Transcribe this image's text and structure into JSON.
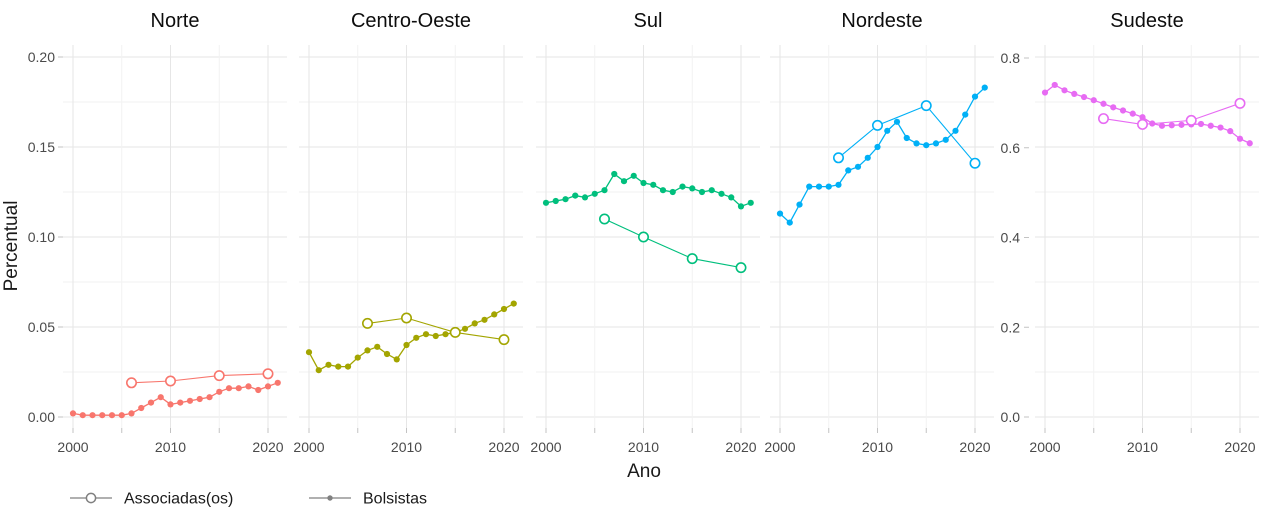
{
  "legend": {
    "marker_color": "#7f7f7f",
    "items": [
      {
        "label": "Associadas(os)",
        "marker": "open-circle"
      },
      {
        "label": "Bolsistas",
        "marker": "filled-dot"
      }
    ]
  },
  "chart_data": {
    "type": "line",
    "title": "",
    "facet_titles": [
      "Norte",
      "Centro-Oeste",
      "Sul",
      "Nordeste",
      "Sudeste"
    ],
    "x_axis": {
      "label": "Ano",
      "tick_labels": [
        "2000",
        "2010",
        "2020"
      ],
      "tick_years": [
        2000,
        2010,
        2020
      ],
      "gridline_years": [
        2000,
        2005,
        2010,
        2015,
        2020
      ],
      "range": [
        1999,
        2022
      ]
    },
    "left_axis": {
      "label": "Percentual",
      "applies_to": [
        "Norte",
        "Centro-Oeste",
        "Sul",
        "Nordeste"
      ],
      "tick_labels": [
        "0.00",
        "0.05",
        "0.10",
        "0.15",
        "0.20"
      ],
      "ticks": [
        0.0,
        0.05,
        0.1,
        0.15,
        0.2
      ],
      "minor_ticks": [
        0.025,
        0.075,
        0.125,
        0.175
      ],
      "range": [
        0,
        0.2
      ],
      "grid": true
    },
    "right_axis": {
      "applies_to": [
        "Sudeste"
      ],
      "tick_labels": [
        "0.0",
        "0.2",
        "0.4",
        "0.6",
        "0.8"
      ],
      "ticks": [
        0.0,
        0.2,
        0.4,
        0.6,
        0.8
      ],
      "minor_ticks": [
        0.1,
        0.3,
        0.5,
        0.7
      ],
      "range": [
        0,
        0.8
      ],
      "grid": true
    },
    "facets": [
      {
        "name": "Norte",
        "color": "#F8766D",
        "y_scale": "left",
        "bolsistas": {
          "years": [
            2000,
            2001,
            2002,
            2003,
            2004,
            2005,
            2006,
            2007,
            2008,
            2009,
            2010,
            2011,
            2012,
            2013,
            2014,
            2015,
            2016,
            2017,
            2018,
            2019,
            2020,
            2021
          ],
          "values": [
            0.002,
            0.001,
            0.001,
            0.001,
            0.001,
            0.001,
            0.002,
            0.005,
            0.008,
            0.011,
            0.007,
            0.008,
            0.009,
            0.01,
            0.011,
            0.014,
            0.016,
            0.016,
            0.017,
            0.015,
            0.017,
            0.019
          ]
        },
        "associadas": {
          "years": [
            2006,
            2010,
            2015,
            2020
          ],
          "values": [
            0.019,
            0.02,
            0.023,
            0.024
          ]
        }
      },
      {
        "name": "Centro-Oeste",
        "color": "#A3A500",
        "y_scale": "left",
        "bolsistas": {
          "years": [
            2000,
            2001,
            2002,
            2003,
            2004,
            2005,
            2006,
            2007,
            2008,
            2009,
            2010,
            2011,
            2012,
            2013,
            2014,
            2015,
            2016,
            2017,
            2018,
            2019,
            2020,
            2021
          ],
          "values": [
            0.036,
            0.026,
            0.029,
            0.028,
            0.028,
            0.033,
            0.037,
            0.039,
            0.035,
            0.032,
            0.04,
            0.044,
            0.046,
            0.045,
            0.046,
            0.047,
            0.049,
            0.052,
            0.054,
            0.057,
            0.06,
            0.063
          ]
        },
        "associadas": {
          "years": [
            2006,
            2010,
            2015,
            2020
          ],
          "values": [
            0.052,
            0.055,
            0.047,
            0.043
          ]
        }
      },
      {
        "name": "Sul",
        "color": "#00BF7D",
        "y_scale": "left",
        "bolsistas": {
          "years": [
            2000,
            2001,
            2002,
            2003,
            2004,
            2005,
            2006,
            2007,
            2008,
            2009,
            2010,
            2011,
            2012,
            2013,
            2014,
            2015,
            2016,
            2017,
            2018,
            2019,
            2020,
            2021
          ],
          "values": [
            0.119,
            0.12,
            0.121,
            0.123,
            0.122,
            0.124,
            0.126,
            0.135,
            0.131,
            0.134,
            0.13,
            0.129,
            0.126,
            0.125,
            0.128,
            0.127,
            0.125,
            0.126,
            0.124,
            0.122,
            0.117,
            0.119
          ]
        },
        "associadas": {
          "years": [
            2006,
            2010,
            2015,
            2020
          ],
          "values": [
            0.11,
            0.1,
            0.088,
            0.083
          ]
        }
      },
      {
        "name": "Nordeste",
        "color": "#00B0F6",
        "y_scale": "left",
        "bolsistas": {
          "years": [
            2000,
            2001,
            2002,
            2003,
            2004,
            2005,
            2006,
            2007,
            2008,
            2009,
            2010,
            2011,
            2012,
            2013,
            2014,
            2015,
            2016,
            2017,
            2018,
            2019,
            2020,
            2021
          ],
          "values": [
            0.113,
            0.108,
            0.118,
            0.128,
            0.128,
            0.128,
            0.129,
            0.137,
            0.139,
            0.144,
            0.15,
            0.159,
            0.164,
            0.155,
            0.152,
            0.151,
            0.152,
            0.154,
            0.159,
            0.168,
            0.178,
            0.183
          ]
        },
        "associadas": {
          "years": [
            2006,
            2010,
            2015,
            2020
          ],
          "values": [
            0.144,
            0.162,
            0.173,
            0.141
          ]
        }
      },
      {
        "name": "Sudeste",
        "color": "#E76BF3",
        "y_scale": "right",
        "bolsistas": {
          "years": [
            2000,
            2001,
            2002,
            2003,
            2004,
            2005,
            2006,
            2007,
            2008,
            2009,
            2010,
            2011,
            2012,
            2013,
            2014,
            2015,
            2016,
            2017,
            2018,
            2019,
            2020,
            2021
          ],
          "values": [
            0.723,
            0.74,
            0.728,
            0.72,
            0.713,
            0.706,
            0.698,
            0.69,
            0.683,
            0.676,
            0.668,
            0.654,
            0.649,
            0.65,
            0.651,
            0.652,
            0.653,
            0.649,
            0.645,
            0.637,
            0.62,
            0.61
          ]
        },
        "associadas": {
          "years": [
            2006,
            2010,
            2015,
            2020
          ],
          "values": [
            0.665,
            0.652,
            0.661,
            0.699
          ]
        }
      }
    ]
  }
}
